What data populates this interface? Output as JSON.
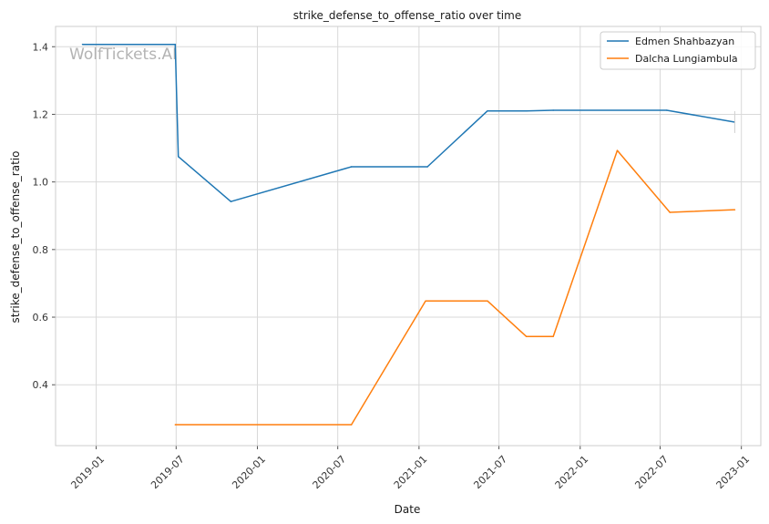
{
  "chart_data": {
    "type": "line",
    "title": "strike_defense_to_offense_ratio over time",
    "xlabel": "Date",
    "ylabel": "strike_defense_to_offense_ratio",
    "watermark": "WolfTickets.AI",
    "x_axis_type": "date",
    "xlim": [
      "2018-10-01",
      "2023-02-14"
    ],
    "ylim": [
      0.22,
      1.46
    ],
    "x_ticks": [
      {
        "date": "2019-01-01",
        "label": "2019-01"
      },
      {
        "date": "2019-07-01",
        "label": "2019-07"
      },
      {
        "date": "2020-01-01",
        "label": "2020-01"
      },
      {
        "date": "2020-07-01",
        "label": "2020-07"
      },
      {
        "date": "2021-01-01",
        "label": "2021-01"
      },
      {
        "date": "2021-07-01",
        "label": "2021-07"
      },
      {
        "date": "2022-01-01",
        "label": "2022-01"
      },
      {
        "date": "2022-07-01",
        "label": "2022-07"
      },
      {
        "date": "2023-01-01",
        "label": "2023-01"
      }
    ],
    "y_ticks": [
      {
        "value": 0.4,
        "label": "0.4"
      },
      {
        "value": 0.6,
        "label": "0.6"
      },
      {
        "value": 0.8,
        "label": "0.8"
      },
      {
        "value": 1.0,
        "label": "1.0"
      },
      {
        "value": 1.2,
        "label": "1.2"
      },
      {
        "value": 1.4,
        "label": "1.4"
      }
    ],
    "grid": true,
    "legend_position": "top-right",
    "series": [
      {
        "name": "Edmen Shahbazyan",
        "color": "#1f77b4",
        "points": [
          {
            "x": "2018-12-01",
            "y": 1.407
          },
          {
            "x": "2019-06-29",
            "y": 1.407
          },
          {
            "x": "2019-07-06",
            "y": 1.075
          },
          {
            "x": "2019-11-02",
            "y": 0.942
          },
          {
            "x": "2020-08-01",
            "y": 1.045
          },
          {
            "x": "2021-01-20",
            "y": 1.045
          },
          {
            "x": "2021-06-05",
            "y": 1.21
          },
          {
            "x": "2021-09-01",
            "y": 1.21
          },
          {
            "x": "2021-11-01",
            "y": 1.212
          },
          {
            "x": "2022-07-16",
            "y": 1.212
          },
          {
            "x": "2022-12-17",
            "y": 1.177
          }
        ]
      },
      {
        "name": "Dalcha Lungiambula",
        "color": "#ff7f0e",
        "points": [
          {
            "x": "2019-06-29",
            "y": 0.282
          },
          {
            "x": "2020-08-01",
            "y": 0.282
          },
          {
            "x": "2021-01-16",
            "y": 0.648
          },
          {
            "x": "2021-06-05",
            "y": 0.648
          },
          {
            "x": "2021-09-01",
            "y": 0.543
          },
          {
            "x": "2021-11-01",
            "y": 0.543
          },
          {
            "x": "2022-03-26",
            "y": 1.093
          },
          {
            "x": "2022-07-23",
            "y": 0.91
          },
          {
            "x": "2022-12-17",
            "y": 0.918
          }
        ]
      }
    ]
  }
}
